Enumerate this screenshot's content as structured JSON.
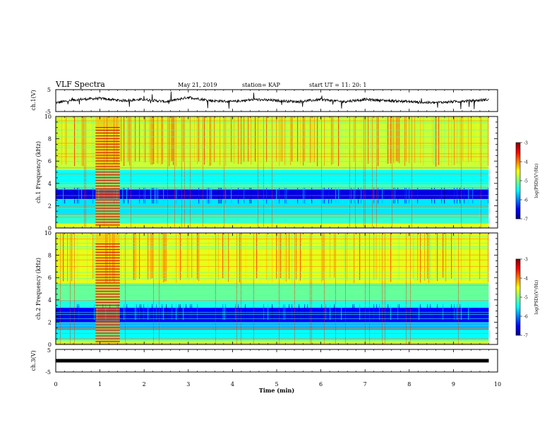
{
  "header": {
    "title": "VLF Spectra",
    "date": "May 21, 2019",
    "station": "station= KAP",
    "start": "start UT = 11: 20: 1"
  },
  "chart_data": [
    {
      "type": "line",
      "panel": "ch1-waveform",
      "ylabel": "ch.1(V)",
      "ylim": [
        -5,
        5
      ],
      "yticks": [
        "5",
        "-5"
      ],
      "xlim": [
        0,
        10
      ],
      "series": [
        {
          "x": [
            0,
            0.5,
            1,
            1.5,
            2,
            2.5,
            3,
            3.5,
            4,
            4.5,
            5,
            5.5,
            6,
            6.5,
            7,
            7.5,
            8,
            8.5,
            9,
            9.5,
            9.8
          ],
          "values": [
            -1,
            0.5,
            1,
            0,
            0.5,
            -0.5,
            1.5,
            0,
            -0.5,
            0.5,
            0,
            -0.5,
            0.5,
            -0.5,
            0.5,
            0,
            -0.5,
            -1,
            -0.5,
            0,
            0.5
          ]
        }
      ]
    },
    {
      "type": "heatmap",
      "panel": "ch1-spectrogram",
      "ylabel": "ch.1 Frequency (kHz)",
      "ylim": [
        0,
        10
      ],
      "yticks": [
        "0",
        "2",
        "4",
        "6",
        "8",
        "10"
      ],
      "xlim": [
        0,
        10
      ],
      "data_extent_min": 9.8,
      "colorbar": {
        "label": "log(PSD)(V²/Hz)",
        "range": [
          -7,
          -3
        ],
        "ticks": [
          "-3",
          "-4",
          "-5",
          "-6",
          "-7"
        ]
      },
      "bands_khz_log_psd": [
        {
          "f": [
            0,
            0.4
          ],
          "v": -4.6
        },
        {
          "f": [
            0.4,
            1.2
          ],
          "v": -5.3
        },
        {
          "f": [
            1.2,
            2.6
          ],
          "v": -5.6
        },
        {
          "f": [
            2.6,
            3.5
          ],
          "v": -6.6
        },
        {
          "f": [
            3.5,
            3.9
          ],
          "v": -5.2
        },
        {
          "f": [
            3.9,
            5.2
          ],
          "v": -5.5
        },
        {
          "f": [
            5.2,
            5.5
          ],
          "v": -4.8
        },
        {
          "f": [
            5.5,
            10
          ],
          "v": -4.7
        }
      ],
      "burst_interval_min": [
        0.9,
        1.45
      ]
    },
    {
      "type": "heatmap",
      "panel": "ch2-spectrogram",
      "ylabel": "ch.2 Frequency (kHz)",
      "ylim": [
        0,
        10
      ],
      "yticks": [
        "0",
        "2",
        "4",
        "6",
        "8",
        "10"
      ],
      "xlim": [
        0,
        10
      ],
      "data_extent_min": 9.8,
      "colorbar": {
        "label": "log(PSD)(V²/Hz)",
        "range": [
          -7,
          -3
        ],
        "ticks": [
          "-3",
          "-4",
          "-5",
          "-6",
          "-7"
        ]
      },
      "bands_khz_log_psd": [
        {
          "f": [
            0,
            0.4
          ],
          "v": -4.7
        },
        {
          "f": [
            0.4,
            1.3
          ],
          "v": -5.5
        },
        {
          "f": [
            1.3,
            2.0
          ],
          "v": -5.8
        },
        {
          "f": [
            2.0,
            3.3
          ],
          "v": -6.5
        },
        {
          "f": [
            3.3,
            4.0
          ],
          "v": -5.4
        },
        {
          "f": [
            4.0,
            5.5
          ],
          "v": -5.1
        },
        {
          "f": [
            5.5,
            10
          ],
          "v": -4.6
        }
      ],
      "burst_interval_min": [
        0.9,
        1.45
      ]
    },
    {
      "type": "line",
      "panel": "ch3-waveform",
      "ylabel": "ch.3(V)",
      "ylim": [
        -5,
        5
      ],
      "yticks": [
        "5",
        "-5"
      ],
      "xlim": [
        0,
        10
      ],
      "xlabel": "Time (min)",
      "xticks": [
        "0",
        "1",
        "2",
        "3",
        "4",
        "5",
        "6",
        "7",
        "8",
        "9",
        "10"
      ],
      "series": [
        {
          "x": [
            0,
            9.8
          ],
          "values": [
            0,
            0
          ]
        }
      ]
    }
  ],
  "colors": {
    "waveform": "#000000",
    "axis": "#000000",
    "background": "#ffffff"
  }
}
